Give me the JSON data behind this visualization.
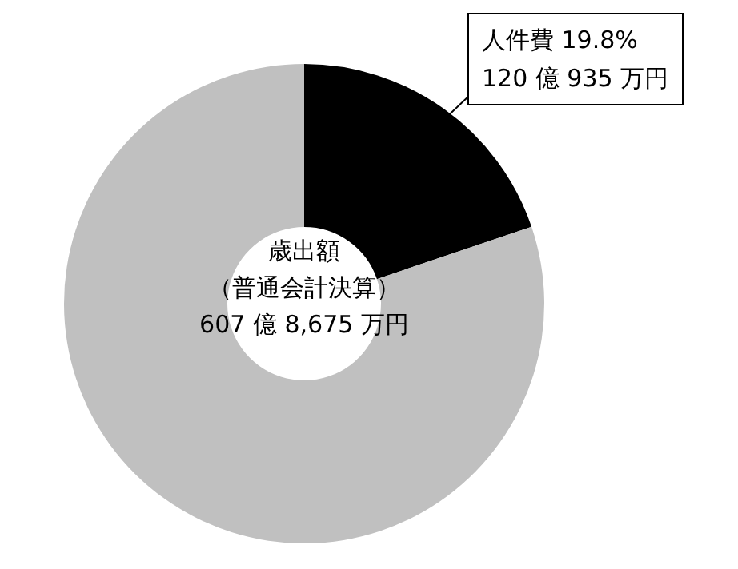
{
  "chart_data": {
    "type": "donut",
    "categories": [
      "人件費",
      null
    ],
    "values": [
      19.8,
      80.2
    ],
    "value_labels": [
      "19.8%",
      null
    ],
    "colors": [
      "#000000",
      "#c0c0c0"
    ],
    "annotations": [
      "歳出額",
      "（普通会計決算）",
      "607 億 8,675 万円",
      "120 億 935 万円"
    ],
    "legend": false
  }
}
